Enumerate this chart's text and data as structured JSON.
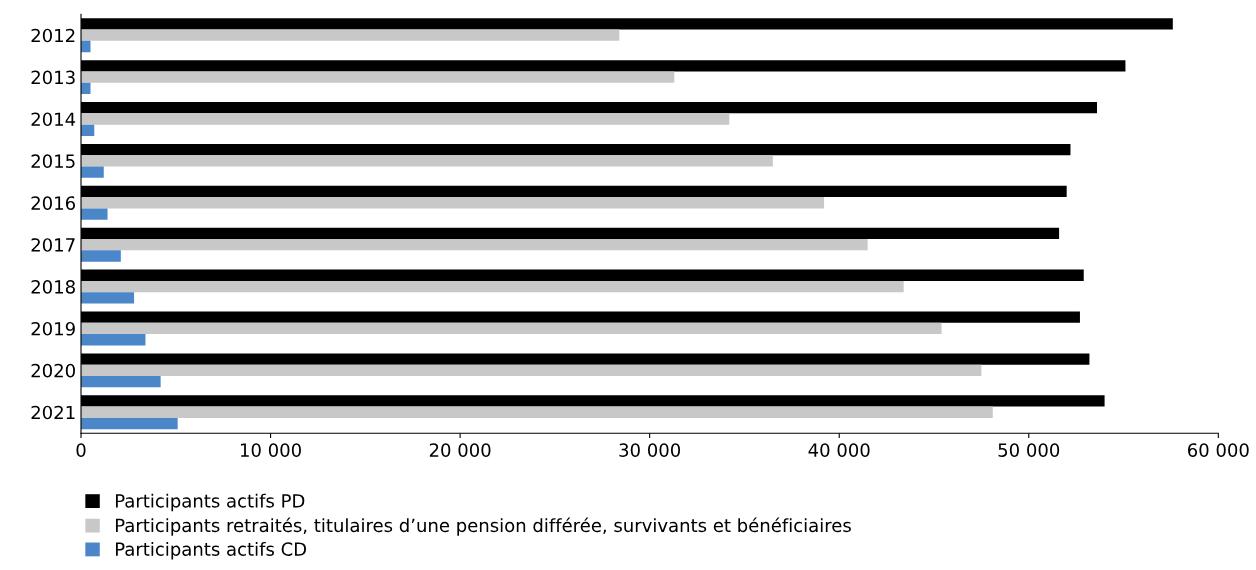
{
  "chart_data": {
    "type": "bar",
    "orientation": "horizontal",
    "categories": [
      "2012",
      "2013",
      "2014",
      "2015",
      "2016",
      "2017",
      "2018",
      "2019",
      "2020",
      "2021"
    ],
    "series": [
      {
        "name": "Participants actifs PD",
        "color": "#000000",
        "values": [
          57600,
          55100,
          53600,
          52200,
          52000,
          51600,
          52900,
          52700,
          53200,
          54000
        ]
      },
      {
        "name": "Participants retraités, titulaires d’une pension différée, survivants et bénéficiaires",
        "color": "#c8c8c8",
        "values": [
          28400,
          31300,
          34200,
          36500,
          39200,
          41500,
          43400,
          45400,
          47500,
          48100
        ]
      },
      {
        "name": "Participants actifs CD",
        "color": "#4a86c8",
        "values": [
          500,
          500,
          700,
          1200,
          1400,
          2100,
          2800,
          3400,
          4200,
          5100
        ]
      }
    ],
    "xlim": [
      0,
      60000
    ],
    "xticks": [
      0,
      {
        "value": 10000,
        "label": "10 000"
      },
      {
        "value": 20000,
        "label": "20 000"
      },
      {
        "value": 30000,
        "label": "30 000"
      },
      {
        "value": 40000,
        "label": "40 000"
      },
      {
        "value": 50000,
        "label": "50 000"
      },
      {
        "value": 60000,
        "label": "60 000"
      }
    ],
    "grid": false,
    "legend": "bottom left"
  }
}
